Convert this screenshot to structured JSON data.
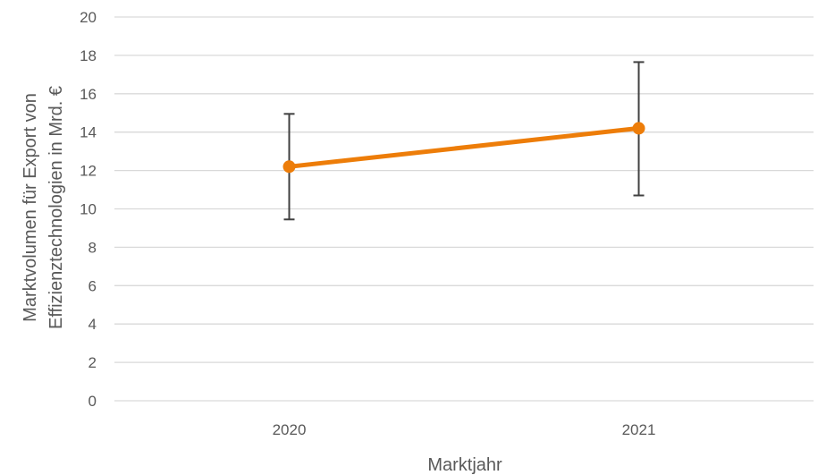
{
  "chart_data": {
    "type": "line",
    "x": [
      "2020",
      "2021"
    ],
    "series": [
      {
        "values": [
          12.2,
          14.2
        ],
        "error_low": [
          9.45,
          10.7
        ],
        "error_high": [
          14.95,
          17.65
        ],
        "color": "#ED7D09"
      }
    ],
    "title": "",
    "xlabel": "Marktjahr",
    "ylabel_lines": [
      "Marktvolumen für Export von",
      "Effizienztechnologien in Mrd. €"
    ],
    "ylim": [
      0,
      20
    ],
    "yticks": [
      0,
      2,
      4,
      6,
      8,
      10,
      12,
      14,
      16,
      18,
      20
    ],
    "grid": true,
    "legend": "none",
    "colors": {
      "gridline": "#D9D9D9",
      "text": "#595959",
      "error_bar": "#404040"
    }
  }
}
